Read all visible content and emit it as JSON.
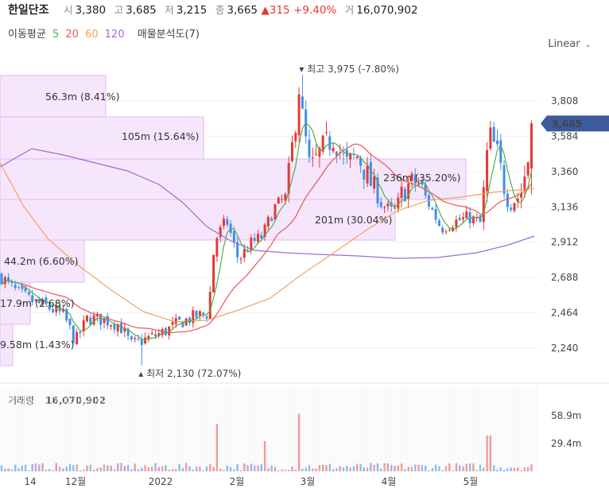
{
  "header": {
    "name": "한일단조",
    "open_label": "시",
    "open": "3,380",
    "high_label": "고",
    "high": "3,685",
    "low_label": "저",
    "low": "3,215",
    "close_label": "종",
    "close": "3,665",
    "change": "▲315",
    "change_pct": "+9.40%",
    "volume_label": "거",
    "volume": "16,070,902"
  },
  "indicators": {
    "ma_label": "이동평균",
    "ma5": "5",
    "ma20": "20",
    "ma60": "60",
    "ma120": "120",
    "vp_label": "매물분석도(7)"
  },
  "scale_toggle": "Linear",
  "colors": {
    "up": "#e53935",
    "down": "#3f8fe8",
    "ma5": "#4caf50",
    "ma20": "#f0525a",
    "ma60": "#f3a261",
    "ma120": "#9c6bd8",
    "vp_fill": "#f6e6fb",
    "vp_stroke": "#e0b9f0",
    "current_tag": "#3d5a9e"
  },
  "chart_data": {
    "type": "candlestick",
    "y_ticks": [
      "3,808",
      "3,584",
      "3,360",
      "3,136",
      "2,912",
      "2,688",
      "2,464",
      "2,240"
    ],
    "y_tick_values": [
      3808,
      3584,
      3360,
      3136,
      2912,
      2688,
      2464,
      2240
    ],
    "x_ticks": [
      "14",
      "12월",
      "2022",
      "2월",
      "3월",
      "4월",
      "5월"
    ],
    "current_price_tag": "3,665",
    "max_marker": "최고 3,975 (-7.80%)",
    "min_marker": "최저 2,130 (72.07%)",
    "volume_profile": [
      {
        "label": "56.3m (8.41%)"
      },
      {
        "label": "105m (15.64%)"
      },
      {
        "label": "236m (35.20%)"
      },
      {
        "label": "201m (30.04%)"
      },
      {
        "label": "44.2m (6.60%)"
      },
      {
        "label": "17.9m (2.68%)"
      },
      {
        "label": "9.58m (1.43%)"
      }
    ],
    "volume_panel": {
      "label": "거래량",
      "value": "16,070,902",
      "y_ticks": [
        "58.9m",
        "29.4m"
      ]
    }
  }
}
